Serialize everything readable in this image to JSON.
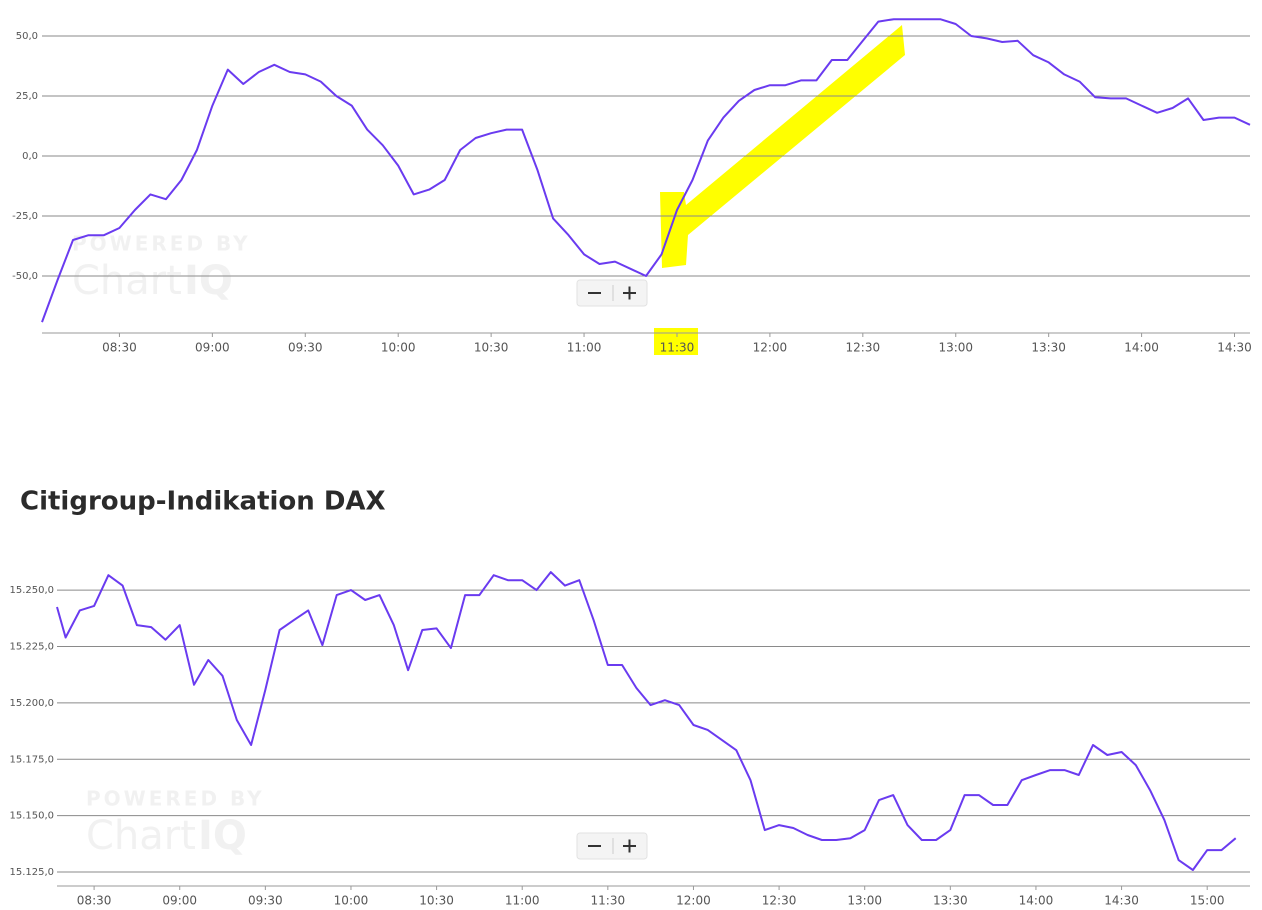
{
  "chart_data": [
    {
      "type": "line",
      "color": "#6a3bf0",
      "grid": true,
      "watermark": {
        "top": "POWERED BY",
        "brand": "Chart",
        "brand2": "IQ"
      },
      "xlim": [
        "08:05",
        "14:35"
      ],
      "xticks": [
        "08:30",
        "09:00",
        "09:30",
        "10:00",
        "10:30",
        "11:00",
        "11:30",
        "12:00",
        "12:30",
        "13:00",
        "13:30",
        "14:00",
        "14:30"
      ],
      "ylim": [
        -73.75,
        65
      ],
      "yticks": [
        {
          "value": 50,
          "label": "50,0"
        },
        {
          "value": 25,
          "label": "25,0"
        },
        {
          "value": 0,
          "label": "0,0"
        },
        {
          "value": -25,
          "label": "-25,0"
        },
        {
          "value": -50,
          "label": "-50,0"
        }
      ],
      "x": [
        "08:05",
        "08:10",
        "08:15",
        "08:20",
        "08:25",
        "08:30",
        "08:35",
        "08:40",
        "08:45",
        "08:50",
        "08:55",
        "09:00",
        "09:05",
        "09:10",
        "09:15",
        "09:20",
        "09:25",
        "09:30",
        "09:35",
        "09:40",
        "09:45",
        "09:50",
        "09:55",
        "10:00",
        "10:05",
        "10:10",
        "10:15",
        "10:20",
        "10:25",
        "10:30",
        "10:35",
        "10:40",
        "10:45",
        "10:50",
        "10:55",
        "11:00",
        "11:05",
        "11:10",
        "11:15",
        "11:20",
        "11:25",
        "11:30",
        "11:35",
        "11:40",
        "11:45",
        "11:50",
        "11:55",
        "12:00",
        "12:05",
        "12:10",
        "12:15",
        "12:20",
        "12:25",
        "12:30",
        "12:35",
        "12:40",
        "12:45",
        "12:50",
        "12:55",
        "13:00",
        "13:05",
        "13:10",
        "13:15",
        "13:20",
        "13:25",
        "13:30",
        "13:35",
        "13:40",
        "13:45",
        "13:50",
        "13:55",
        "14:00",
        "14:05",
        "14:10",
        "14:15",
        "14:20",
        "14:25",
        "14:30",
        "14:35"
      ],
      "values": [
        -69.2,
        -51.7,
        -35,
        -33,
        -33,
        -30,
        -22.5,
        -16,
        -18,
        -10,
        2.5,
        21,
        36,
        30,
        35,
        38,
        35,
        34,
        31,
        25,
        21,
        11,
        4.5,
        -4,
        -16,
        -14,
        -10,
        2.5,
        7.5,
        9.5,
        11,
        11,
        -6,
        -26,
        -33,
        -41,
        -45,
        -44,
        -47,
        -50,
        -41,
        -22.5,
        -10,
        6.5,
        16,
        23,
        27.5,
        29.5,
        29.5,
        31.5,
        31.5,
        40,
        40,
        48,
        56,
        57,
        57,
        57,
        57,
        55,
        50,
        49,
        47.5,
        48,
        42,
        39,
        34,
        31,
        24.5,
        24,
        24,
        21,
        18,
        20,
        24,
        15,
        16,
        16,
        13
      ]
    },
    {
      "type": "line",
      "color": "#6a3bf0",
      "grid": true,
      "title": "Citigroup-Indikation DAX",
      "watermark": {
        "top": "POWERED BY",
        "brand": "Chart",
        "brand2": "IQ"
      },
      "xlim": [
        "08:17",
        "15:15"
      ],
      "xticks": [
        "08:30",
        "09:00",
        "09:30",
        "10:00",
        "10:30",
        "11:00",
        "11:30",
        "12:00",
        "12:30",
        "13:00",
        "13:30",
        "14:00",
        "14:30",
        "15:00"
      ],
      "ylim": [
        15118.8,
        15270
      ],
      "yticks": [
        {
          "value": 15250,
          "label": "15.250,0"
        },
        {
          "value": 15225,
          "label": "15.225,0"
        },
        {
          "value": 15200,
          "label": "15.200,0"
        },
        {
          "value": 15175,
          "label": "15.175,0"
        },
        {
          "value": 15150,
          "label": "15.150,0"
        },
        {
          "value": 15125,
          "label": "15.125,0"
        }
      ],
      "x": [
        "08:17",
        "08:20",
        "08:25",
        "08:30",
        "08:35",
        "08:40",
        "08:45",
        "08:50",
        "08:55",
        "09:00",
        "09:05",
        "09:10",
        "09:15",
        "09:20",
        "09:25",
        "09:30",
        "09:35",
        "09:40",
        "09:45",
        "09:50",
        "09:55",
        "10:00",
        "10:05",
        "10:10",
        "10:15",
        "10:20",
        "10:25",
        "10:30",
        "10:35",
        "10:40",
        "10:45",
        "10:50",
        "10:55",
        "11:00",
        "11:05",
        "11:10",
        "11:15",
        "11:20",
        "11:25",
        "11:30",
        "11:35",
        "11:40",
        "11:45",
        "11:50",
        "11:55",
        "12:00",
        "12:05",
        "12:10",
        "12:15",
        "12:20",
        "12:25",
        "12:30",
        "12:35",
        "12:40",
        "12:45",
        "12:50",
        "12:55",
        "13:00",
        "13:05",
        "13:10",
        "13:15",
        "13:20",
        "13:25",
        "13:30",
        "13:35",
        "13:40",
        "13:45",
        "13:50",
        "13:55",
        "14:00",
        "14:05",
        "14:10",
        "14:15",
        "14:20",
        "14:25",
        "14:30",
        "14:35",
        "14:40",
        "14:45",
        "14:50",
        "14:55",
        "15:00",
        "15:05",
        "15:10"
      ],
      "values": [
        15242.5,
        15229,
        15241,
        15243,
        15256.6,
        15252,
        15234.5,
        15233.6,
        15228,
        15234.5,
        15208,
        15219,
        15212,
        15192.4,
        15181.3,
        15205.7,
        15232.3,
        15236.7,
        15241,
        15225.6,
        15247.8,
        15250,
        15245.6,
        15247.8,
        15234.5,
        15214.5,
        15232.3,
        15233,
        15224.3,
        15247.8,
        15247.8,
        15256.6,
        15254.4,
        15254.4,
        15250,
        15258,
        15252,
        15254.4,
        15236.7,
        15216.8,
        15216.8,
        15206.6,
        15199,
        15201.2,
        15199,
        15190.2,
        15188,
        15183.5,
        15179,
        15165.7,
        15143.6,
        15145.8,
        15144.5,
        15141.4,
        15139.2,
        15139.2,
        15140,
        15143.6,
        15156.9,
        15159.1,
        15145.8,
        15139.2,
        15139.2,
        15143.6,
        15159.1,
        15159.1,
        15154.7,
        15154.7,
        15165.7,
        15168,
        15170.2,
        15170.2,
        15168,
        15181.3,
        15176.9,
        15178.2,
        15172.4,
        15161.3,
        15148,
        15130.3,
        15125.9,
        15134.7,
        15134.7,
        15140
      ]
    }
  ]
}
